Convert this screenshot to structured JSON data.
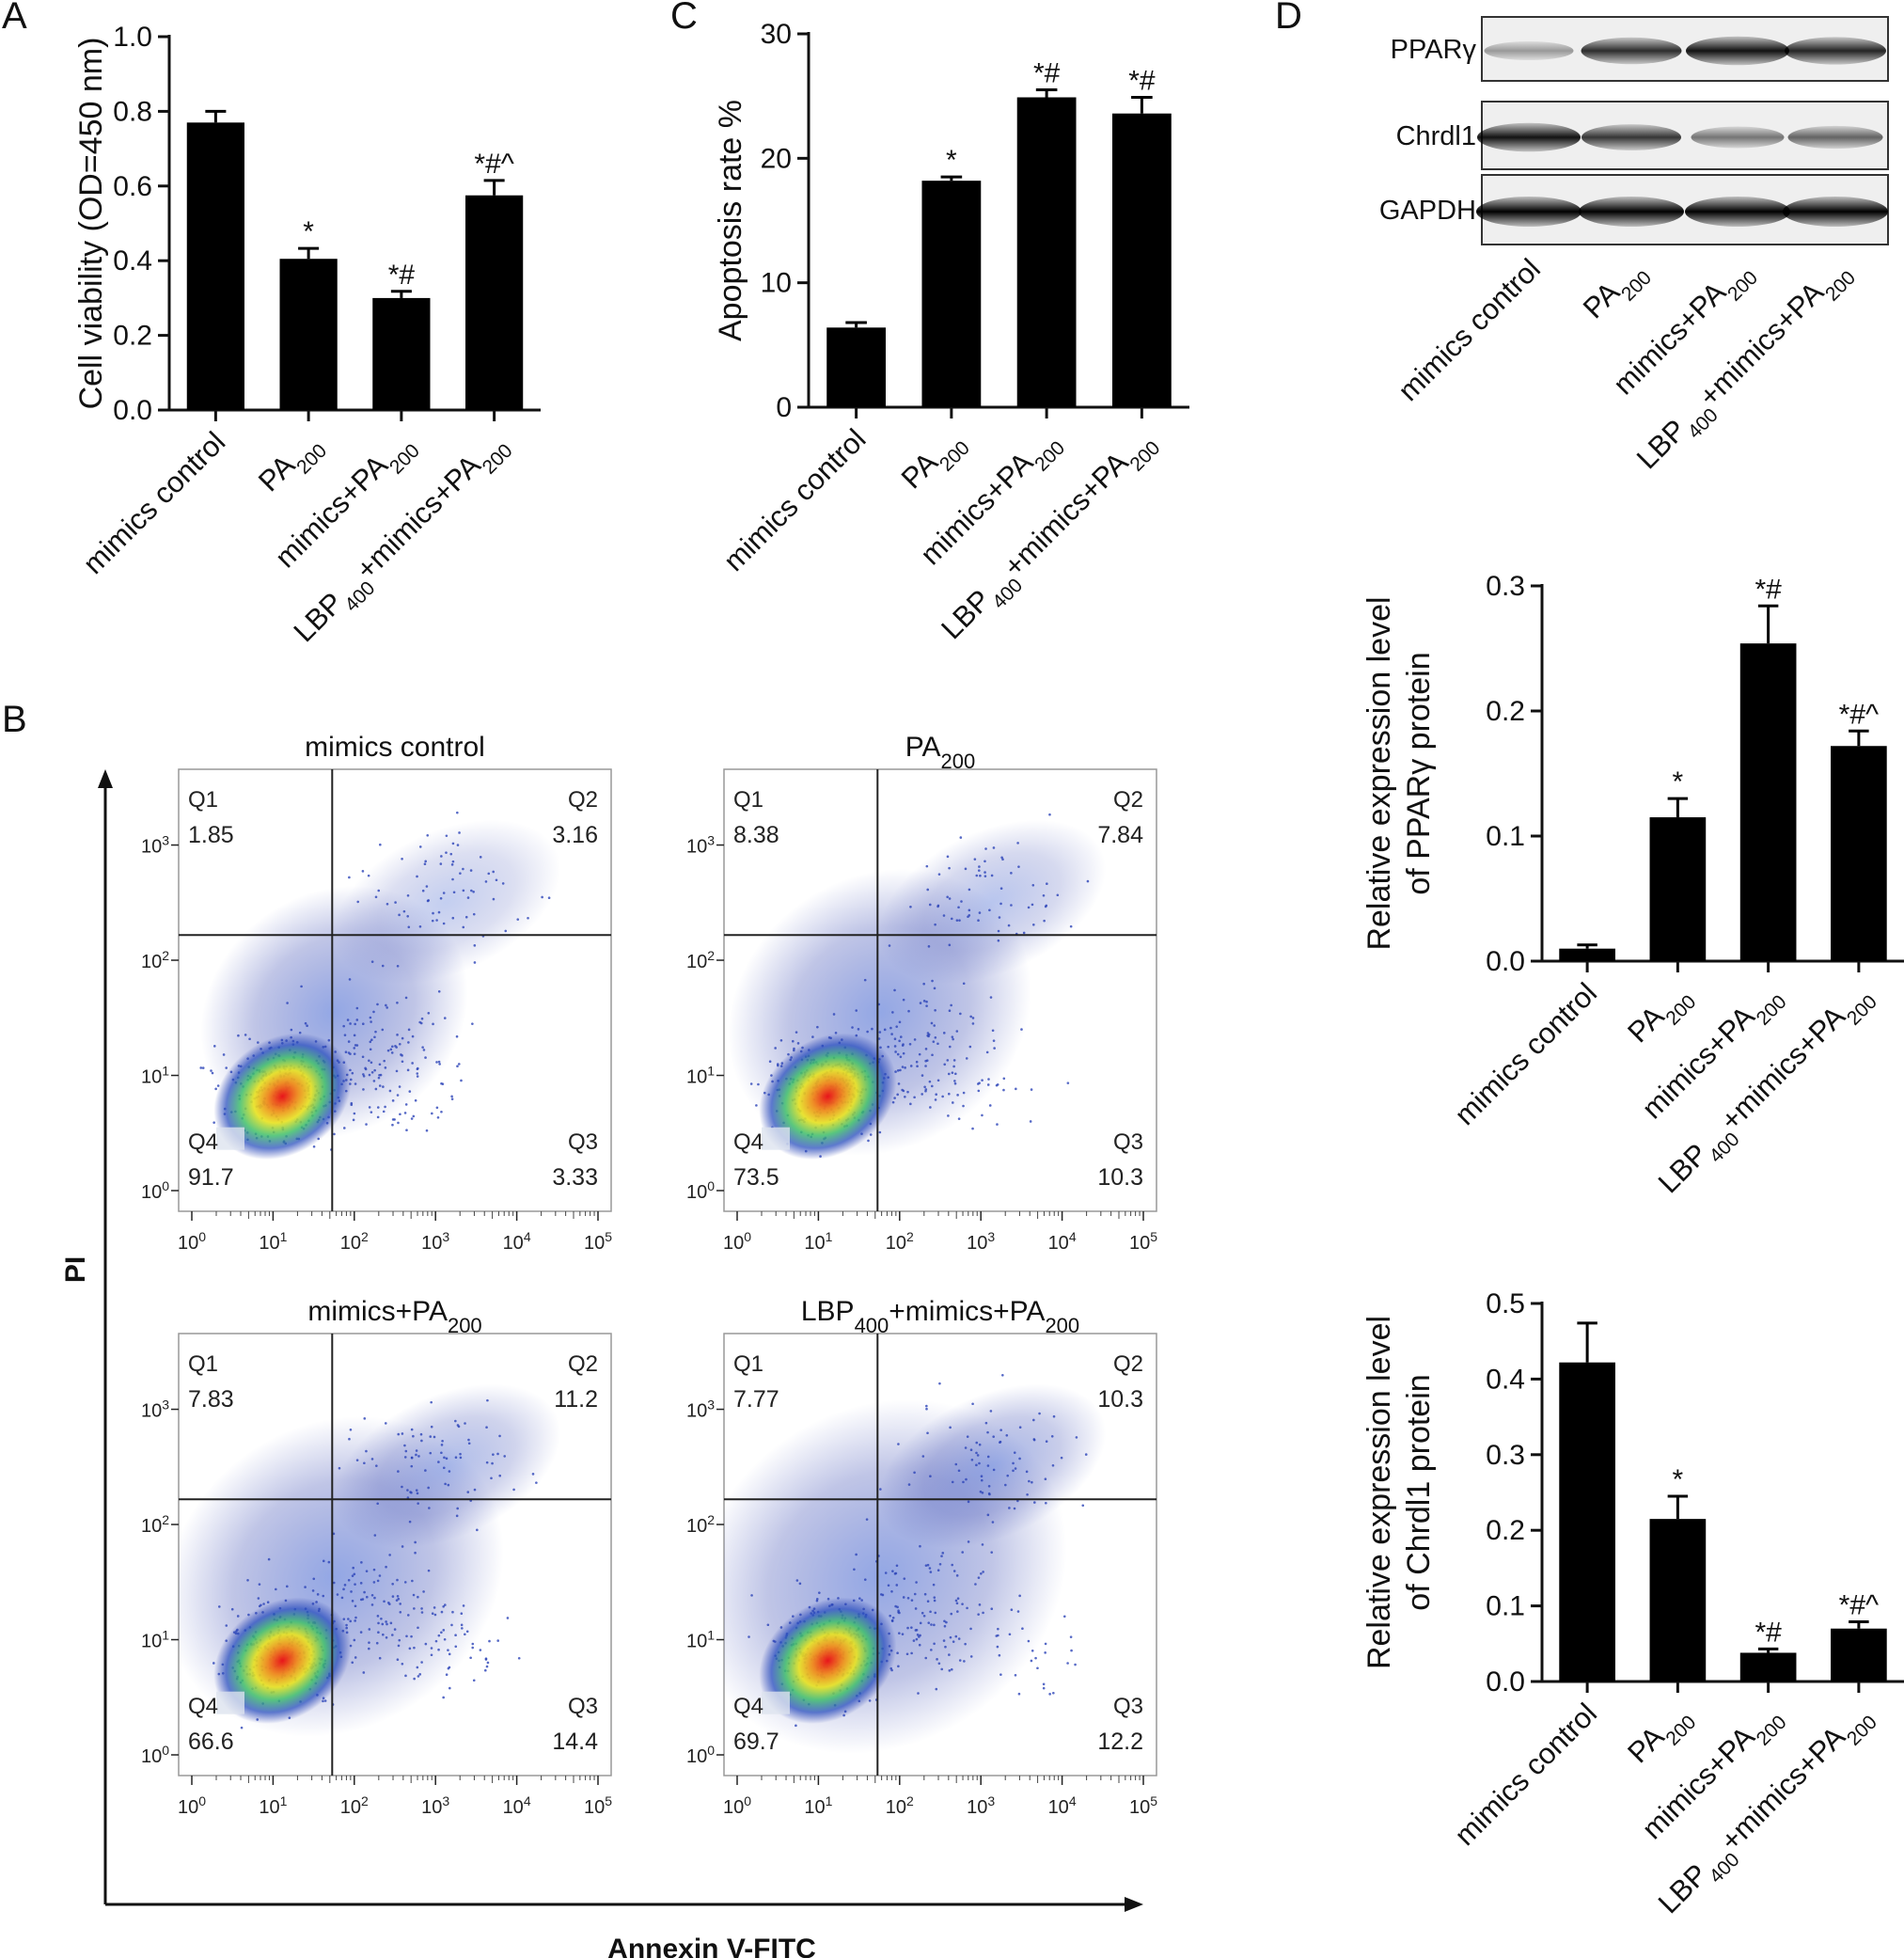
{
  "panels": {
    "a": "A",
    "b": "B",
    "c": "C",
    "d": "D"
  },
  "group_labels": [
    [
      {
        "t": "mimics control"
      }
    ],
    [
      {
        "t": "PA"
      },
      {
        "t": "200",
        "sub": true
      }
    ],
    [
      {
        "t": "mimics+PA"
      },
      {
        "t": "200",
        "sub": true
      }
    ],
    [
      {
        "t": "LBP"
      },
      {
        "t": "400",
        "sub": true
      },
      {
        "t": "+mimics+PA"
      },
      {
        "t": "200",
        "sub": true
      }
    ]
  ],
  "colors": {
    "bar": "#000000",
    "axis": "#111111",
    "quad_line": "#222222"
  },
  "chart_data": [
    {
      "id": "A",
      "type": "bar",
      "categories": [
        "mimics control",
        "PA200",
        "mimics+PA200",
        "LBP400+mimics+PA200"
      ],
      "values": [
        0.77,
        0.405,
        0.3,
        0.575
      ],
      "errors": [
        0.03,
        0.028,
        0.018,
        0.04
      ],
      "significance": [
        "",
        "*",
        "*#",
        "*#^"
      ],
      "ylabel": "Cell viability (OD=450 nm)",
      "ylim": [
        0,
        1.0
      ],
      "yticks": [
        0.0,
        0.2,
        0.4,
        0.6,
        0.8,
        1.0
      ],
      "ytick_labels": [
        "0.0",
        "0.2",
        "0.4",
        "0.6",
        "0.8",
        "1.0"
      ]
    },
    {
      "id": "C",
      "type": "bar",
      "categories": [
        "mimics control",
        "PA200",
        "mimics+PA200",
        "LBP400+mimics+PA200"
      ],
      "values": [
        6.4,
        18.2,
        24.9,
        23.6
      ],
      "errors": [
        0.4,
        0.3,
        0.6,
        1.3
      ],
      "significance": [
        "",
        "*",
        "*#",
        "*#"
      ],
      "ylabel": "Apoptosis rate %",
      "ylim": [
        0,
        30
      ],
      "yticks": [
        0,
        10,
        20,
        30
      ],
      "ytick_labels": [
        "0",
        "10",
        "20",
        "30"
      ]
    },
    {
      "id": "D-PPARg",
      "type": "bar",
      "categories": [
        "mimics control",
        "PA200",
        "mimics+PA200",
        "LBP400+mimics+PA200"
      ],
      "values": [
        0.01,
        0.115,
        0.254,
        0.172
      ],
      "errors": [
        0.003,
        0.015,
        0.03,
        0.012
      ],
      "significance": [
        "",
        "*",
        "*#",
        "*#^"
      ],
      "ylabel_lines": [
        "Relative expression level",
        "of PPARγ protein"
      ],
      "ylim": [
        0,
        0.3
      ],
      "yticks": [
        0.0,
        0.1,
        0.2,
        0.3
      ],
      "ytick_labels": [
        "0.0",
        "0.1",
        "0.2",
        "0.3"
      ]
    },
    {
      "id": "D-Chrdl1",
      "type": "bar",
      "categories": [
        "mimics control",
        "PA200",
        "mimics+PA200",
        "LBP400+mimics+PA200"
      ],
      "values": [
        0.422,
        0.215,
        0.038,
        0.07
      ],
      "errors": [
        0.052,
        0.03,
        0.005,
        0.009
      ],
      "significance": [
        "",
        "*",
        "*#",
        "*#^"
      ],
      "ylabel_lines": [
        "Relative expression level",
        "of Chrdl1 protein"
      ],
      "ylim": [
        0,
        0.5
      ],
      "yticks": [
        0.0,
        0.1,
        0.2,
        0.3,
        0.4,
        0.5
      ],
      "ytick_labels": [
        "0.0",
        "0.1",
        "0.2",
        "0.3",
        "0.4",
        "0.5"
      ]
    }
  ],
  "flow": {
    "x_axis_label": "Annexin V-FITC",
    "y_axis_label": "PI",
    "tick_powers": [
      "0",
      "1",
      "2",
      "3",
      "4",
      "5"
    ],
    "quadrant_names": [
      "Q1",
      "Q2",
      "Q3",
      "Q4"
    ],
    "plots": [
      {
        "title": [
          {
            "t": "mimics control"
          }
        ],
        "q1": "1.85",
        "q2": "3.16",
        "q3": "3.33",
        "q4": "91.7"
      },
      {
        "title": [
          {
            "t": "PA"
          },
          {
            "t": "200",
            "sub": true
          }
        ],
        "q1": "8.38",
        "q2": "7.84",
        "q3": "10.3",
        "q4": "73.5"
      },
      {
        "title": [
          {
            "t": "mimics+PA"
          },
          {
            "t": "200",
            "sub": true
          }
        ],
        "q1": "7.83",
        "q2": "11.2",
        "q3": "14.4",
        "q4": "66.6"
      },
      {
        "title": [
          {
            "t": "LBP"
          },
          {
            "t": "400",
            "sub": true
          },
          {
            "t": "+mimics+PA"
          },
          {
            "t": "200",
            "sub": true
          }
        ],
        "q1": "7.77",
        "q2": "10.3",
        "q3": "12.2",
        "q4": "69.7"
      }
    ]
  },
  "blot": {
    "rows": [
      "PPARγ",
      "Chrdl1",
      "GAPDH"
    ],
    "lanes": [
      [
        {
          "t": "mimics control"
        }
      ],
      [
        {
          "t": "PA"
        },
        {
          "t": "200",
          "sub": true
        }
      ],
      [
        {
          "t": "mimics+PA"
        },
        {
          "t": "200",
          "sub": true
        }
      ],
      [
        {
          "t": "LBP"
        },
        {
          "t": "400",
          "sub": true
        },
        {
          "t": "+mimics+PA"
        },
        {
          "t": "200",
          "sub": true
        }
      ]
    ],
    "band_intensity": [
      [
        0.15,
        0.75,
        0.9,
        0.8
      ],
      [
        0.9,
        0.7,
        0.35,
        0.45
      ],
      [
        1.0,
        1.0,
        1.0,
        1.0
      ]
    ]
  }
}
